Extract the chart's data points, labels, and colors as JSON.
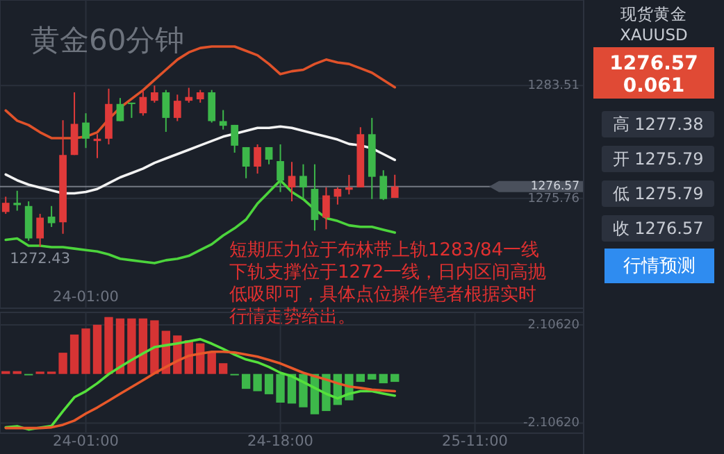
{
  "chart_data": [
    {
      "type": "candlestick",
      "title": "黄金60分钟",
      "categories": [
        null,
        null,
        null,
        null,
        null,
        null,
        null,
        "24-01:00",
        null,
        null,
        null,
        null,
        null,
        null,
        null,
        null,
        null,
        null,
        null,
        null,
        null,
        null,
        null,
        null,
        null,
        null,
        null,
        null,
        null,
        null,
        null,
        null,
        null,
        null,
        null,
        null,
        null,
        null,
        null,
        null,
        null,
        null,
        null,
        null,
        null,
        null,
        null,
        null,
        null,
        null,
        null
      ],
      "ohlc": [
        [
          1274.82,
          1275.87,
          1274.69,
          1275.45
        ],
        [
          1275.45,
          1276.28,
          1274.91,
          1275.29
        ],
        [
          1275.23,
          1275.55,
          1272.84,
          1273.0
        ],
        [
          1273.0,
          1274.69,
          1272.43,
          1274.43
        ],
        [
          1274.5,
          1275.23,
          1273.79,
          1274.05
        ],
        [
          1274.11,
          1281.13,
          1273.32,
          1278.74
        ],
        [
          1278.74,
          1283.05,
          1278.74,
          1280.88
        ],
        [
          1280.97,
          1281.61,
          1279.22,
          1279.86
        ],
        [
          1279.7,
          1280.17,
          1278.52,
          1279.86
        ],
        [
          1279.86,
          1283.3,
          1279.47,
          1282.25
        ],
        [
          1282.25,
          1282.66,
          1281.07,
          1281.07
        ],
        [
          1282.34,
          1282.34,
          1281.29,
          1282.25
        ],
        [
          1281.61,
          1283.21,
          1281.45,
          1282.73
        ],
        [
          1282.47,
          1283.52,
          1282.34,
          1283.05
        ],
        [
          1283.05,
          1283.21,
          1280.33,
          1281.29
        ],
        [
          1281.29,
          1282.89,
          1281.07,
          1282.47
        ],
        [
          1282.47,
          1283.36,
          1282.34,
          1282.73
        ],
        [
          1282.57,
          1283.21,
          1282.34,
          1283.05
        ],
        [
          1283.05,
          1283.21,
          1280.97,
          1281.07
        ],
        [
          1281.07,
          1281.83,
          1280.49,
          1280.75
        ],
        [
          1280.81,
          1280.81,
          1278.9,
          1279.38
        ],
        [
          1279.28,
          1279.28,
          1277.14,
          1277.94
        ],
        [
          1277.94,
          1279.47,
          1277.46,
          1279.28
        ],
        [
          1279.28,
          1279.28,
          1278.1,
          1278.42
        ],
        [
          1278.32,
          1279.47,
          1276.19,
          1276.98
        ],
        [
          1276.51,
          1278.26,
          1275.55,
          1277.3
        ],
        [
          1277.3,
          1278.1,
          1275.71,
          1276.51
        ],
        [
          1276.41,
          1278.1,
          1273.54,
          1274.27
        ],
        [
          1274.43,
          1276.51,
          1273.63,
          1275.96
        ],
        [
          1275.87,
          1276.51,
          1275.33,
          1276.41
        ],
        [
          1276.35,
          1277.37,
          1276.03,
          1276.51
        ],
        [
          1276.51,
          1280.65,
          1276.51,
          1280.17
        ],
        [
          1280.17,
          1281.29,
          1275.71,
          1277.24
        ],
        [
          1277.3,
          1277.69,
          1275.64,
          1275.71
        ],
        [
          1275.79,
          1277.38,
          1275.79,
          1276.57
        ],
        null,
        null,
        null,
        null,
        null,
        null,
        null,
        null,
        null,
        null,
        null,
        null,
        null,
        null,
        null,
        null
      ],
      "colors": [
        "#e03a3a",
        "#3db84a",
        "#3db84a",
        "#e03a3a",
        "#3db84a",
        "#e03a3a",
        "#e03a3a",
        "#3db84a",
        "#e03a3a",
        "#e03a3a",
        "#3db84a",
        "#3db84a",
        "#e03a3a",
        "#e03a3a",
        "#3db84a",
        "#e03a3a",
        "#e03a3a",
        "#e03a3a",
        "#3db84a",
        "#3db84a",
        "#3db84a",
        "#3db84a",
        "#e03a3a",
        "#3db84a",
        "#3db84a",
        "#e03a3a",
        "#3db84a",
        "#3db84a",
        "#e03a3a",
        "#e03a3a",
        "#e03a3a",
        "#e03a3a",
        "#3db84a",
        "#3db84a",
        "#e03a3a",
        null,
        null,
        null,
        null,
        null,
        null,
        null,
        null,
        null,
        null,
        null,
        null,
        null,
        null,
        null,
        null
      ],
      "series": [
        {
          "type": "line",
          "color": "#e0522a",
          "values": [
            1281.8,
            1281.1,
            1280.8,
            1280.3,
            1279.9,
            1279.9,
            1279.9,
            1280.0,
            1280.3,
            1281.2,
            1282.0,
            1282.6,
            1283.2,
            1283.9,
            1284.6,
            1285.3,
            1285.8,
            1286.1,
            1286.2,
            1286.2,
            1286.2,
            1285.9,
            1285.6,
            1285.0,
            1284.3,
            1284.5,
            1284.6,
            1285.0,
            1285.3,
            1285.1,
            1285.0,
            1284.7,
            1284.4,
            1283.9,
            1283.4,
            null,
            null,
            null,
            null,
            null,
            null,
            null,
            null,
            null,
            null,
            null,
            null,
            null,
            null,
            null,
            null
          ]
        },
        {
          "type": "line",
          "color": "#f2f2f2",
          "values": [
            1277.4,
            1277.0,
            1276.7,
            1276.5,
            1276.3,
            1276.1,
            1276.1,
            1276.2,
            1276.4,
            1276.8,
            1277.2,
            1277.5,
            1277.8,
            1278.2,
            1278.5,
            1278.8,
            1279.1,
            1279.4,
            1279.7,
            1280.0,
            1280.2,
            1280.4,
            1280.6,
            1280.6,
            1280.7,
            1280.6,
            1280.4,
            1280.2,
            1280.0,
            1279.8,
            1279.5,
            1279.4,
            1279.2,
            1278.8,
            1278.4,
            null,
            null,
            null,
            null,
            null,
            null,
            null,
            null,
            null,
            null,
            null,
            null,
            null,
            null,
            null,
            null
          ]
        },
        {
          "type": "line",
          "color": "#4cd43c",
          "values": [
            1272.9,
            1273.0,
            1272.5,
            1272.5,
            1272.4,
            1272.4,
            1272.3,
            1272.2,
            1272.1,
            1271.9,
            1271.6,
            1271.5,
            1271.4,
            1271.3,
            1271.5,
            1271.6,
            1271.8,
            1272.2,
            1272.6,
            1273.2,
            1273.7,
            1274.3,
            1275.4,
            1276.2,
            1277.0,
            1276.2,
            1275.7,
            1275.0,
            1274.4,
            1274.2,
            1273.9,
            1273.8,
            1273.8,
            1273.6,
            1273.4,
            null,
            null,
            null,
            null,
            null,
            null,
            null,
            null,
            null,
            null,
            null,
            null,
            null,
            null,
            null,
            null
          ]
        }
      ],
      "ylim": [
        1268.2,
        1289.4
      ],
      "yticks": [
        1283.51,
        1275.76
      ],
      "ref_lines": [
        {
          "axis": "y",
          "value": 1276.57,
          "label": "1276.57",
          "color": "#9aa0aa"
        }
      ],
      "annotations": [
        "1272.43",
        "短期压力位于布林带上轨1283/84一线",
        "下轨支撑位于1272一线，日内区间高抛",
        "低吸即可，具体点位操作笔者根据实时",
        "行情走势给出。"
      ],
      "grid": true
    },
    {
      "type": "bar",
      "categories": [
        null,
        null,
        null,
        null,
        null,
        null,
        null,
        "24-01:00",
        null,
        null,
        null,
        null,
        null,
        null,
        null,
        null,
        null,
        null,
        null,
        null,
        null,
        null,
        null,
        null,
        "24-18:00",
        null,
        null,
        null,
        null,
        null,
        null,
        null,
        null,
        null,
        null,
        null,
        null,
        null,
        null,
        null,
        null,
        "25-11:00",
        null,
        null,
        null,
        null,
        null,
        null,
        null,
        null,
        null
      ],
      "series": [
        {
          "type": "bar",
          "values": [
            0.12,
            0.12,
            -0.04,
            0.1,
            0.1,
            0.91,
            1.69,
            1.95,
            2.11,
            2.44,
            2.38,
            2.38,
            2.38,
            2.3,
            1.85,
            1.65,
            1.45,
            1.31,
            0.95,
            0.46,
            -0.04,
            -0.64,
            -0.74,
            -0.87,
            -1.23,
            -1.27,
            -1.43,
            -1.73,
            -1.59,
            -1.33,
            -1.13,
            -0.34,
            -0.24,
            -0.4,
            -0.34,
            null,
            null,
            null,
            null,
            null,
            null,
            null,
            null,
            null,
            null,
            null,
            null,
            null,
            null,
            null,
            null
          ],
          "colors": [
            "#d63434",
            "#d63434",
            "#3db84a",
            "#d63434",
            "#d63434",
            "#d63434",
            "#d63434",
            "#d63434",
            "#d63434",
            "#d63434",
            "#d63434",
            "#d63434",
            "#d63434",
            "#d63434",
            "#d63434",
            "#d63434",
            "#d63434",
            "#d63434",
            "#d63434",
            "#d63434",
            "#3db84a",
            "#3db84a",
            "#3db84a",
            "#3db84a",
            "#3db84a",
            "#3db84a",
            "#3db84a",
            "#3db84a",
            "#3db84a",
            "#3db84a",
            "#3db84a",
            "#3db84a",
            "#3db84a",
            "#3db84a",
            "#3db84a",
            null,
            null,
            null,
            null,
            null,
            null,
            null,
            null,
            null,
            null,
            null,
            null,
            null,
            null,
            null,
            null
          ]
        },
        {
          "type": "line",
          "color": "#55e03c",
          "values": [
            -2.29,
            -2.24,
            -2.38,
            -2.3,
            -2.23,
            -1.6,
            -1.0,
            -0.74,
            -0.4,
            -0.01,
            0.3,
            0.6,
            0.88,
            1.15,
            1.23,
            1.31,
            1.4,
            1.49,
            1.3,
            1.07,
            0.83,
            0.62,
            0.5,
            0.3,
            0.05,
            -0.1,
            -0.35,
            -0.6,
            -0.85,
            -1.05,
            -0.85,
            -0.74,
            -0.74,
            -0.84,
            -0.93,
            null,
            null,
            null,
            null,
            null,
            null,
            null,
            null,
            null,
            null,
            null,
            null,
            null,
            null,
            null,
            null
          ]
        },
        {
          "type": "line",
          "color": "#e8582a",
          "values": [
            -2.32,
            -2.32,
            -2.32,
            -2.32,
            -2.29,
            -2.18,
            -2.0,
            -1.7,
            -1.44,
            -1.15,
            -0.85,
            -0.56,
            -0.27,
            0.03,
            0.3,
            0.56,
            0.78,
            0.87,
            0.95,
            0.95,
            0.92,
            0.83,
            0.74,
            0.6,
            0.45,
            0.25,
            0.05,
            -0.1,
            -0.24,
            -0.4,
            -0.54,
            -0.6,
            -0.67,
            -0.71,
            -0.74,
            null,
            null,
            null,
            null,
            null,
            null,
            null,
            null,
            null,
            null,
            null,
            null,
            null,
            null,
            null,
            null
          ]
        }
      ],
      "ylim": [
        -2.54,
        2.64
      ],
      "yticks": [
        {
          "value": 2.1062,
          "label": "2.10620"
        },
        {
          "value": -2.1062,
          "label": "-2.10620"
        }
      ],
      "grid": true
    },
    {
      "type": "other",
      "title": "现货黄金",
      "subtitle": "XAUUSD",
      "annotations": [
        "1276.57",
        "0.061",
        "高 1277.38",
        "开 1275.79",
        "低 1275.79",
        "收 1276.57",
        "行情预测"
      ]
    }
  ]
}
